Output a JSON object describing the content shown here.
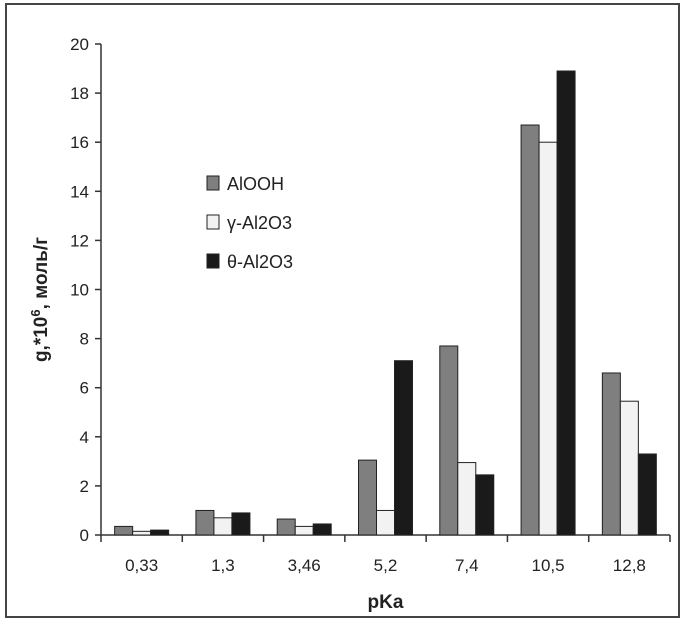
{
  "chart_data": {
    "type": "bar",
    "xlabel": "pKa",
    "ylabel_main": "g,*10",
    "ylabel_sup": "6",
    "ylabel_tail": ", моль/г",
    "categories": [
      "0,33",
      "1,3",
      "3,46",
      "5,2",
      "7,4",
      "10,5",
      "12,8"
    ],
    "ylim": [
      0,
      20
    ],
    "yticks": [
      0,
      2,
      4,
      6,
      8,
      10,
      12,
      14,
      16,
      18,
      20
    ],
    "grid": false,
    "legend_position": "upper-left",
    "series": [
      {
        "name": "AlOOH",
        "color": "#7f7f7f",
        "values": [
          0.35,
          1.0,
          0.65,
          3.05,
          7.7,
          16.7,
          6.6
        ]
      },
      {
        "name": "γ-Al2O3",
        "color": "#f2f2f2",
        "values": [
          0.15,
          0.7,
          0.35,
          1.0,
          2.95,
          16.0,
          5.45
        ]
      },
      {
        "name": "θ-Al2O3",
        "color": "#1a1a1a",
        "values": [
          0.2,
          0.9,
          0.45,
          7.1,
          2.45,
          18.9,
          3.3
        ]
      }
    ]
  }
}
